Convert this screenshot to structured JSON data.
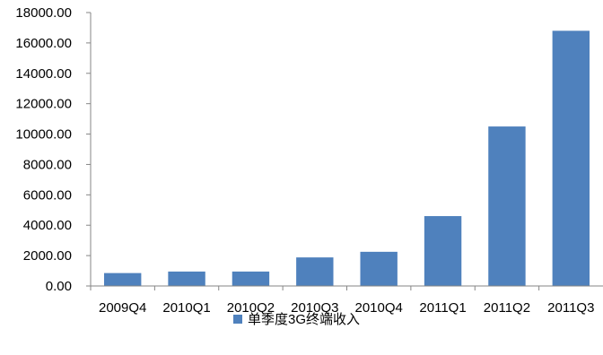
{
  "chart_data": {
    "type": "bar",
    "categories": [
      "2009Q4",
      "2010Q1",
      "2010Q2",
      "2010Q3",
      "2010Q4",
      "2011Q1",
      "2011Q2",
      "2011Q3"
    ],
    "series": [
      {
        "name": "单季度3G终端收入",
        "values": [
          850,
          950,
          950,
          1880,
          2250,
          4600,
          10500,
          16800
        ]
      }
    ],
    "yticks": [
      "0.00",
      "2000.00",
      "4000.00",
      "6000.00",
      "8000.00",
      "10000.00",
      "12000.00",
      "14000.00",
      "16000.00",
      "18000.00"
    ],
    "ylim": [
      0,
      18000
    ],
    "grid": false,
    "legend_position": "bottom",
    "colors": {
      "bar": "#4f81bd",
      "axis": "#868686"
    }
  }
}
